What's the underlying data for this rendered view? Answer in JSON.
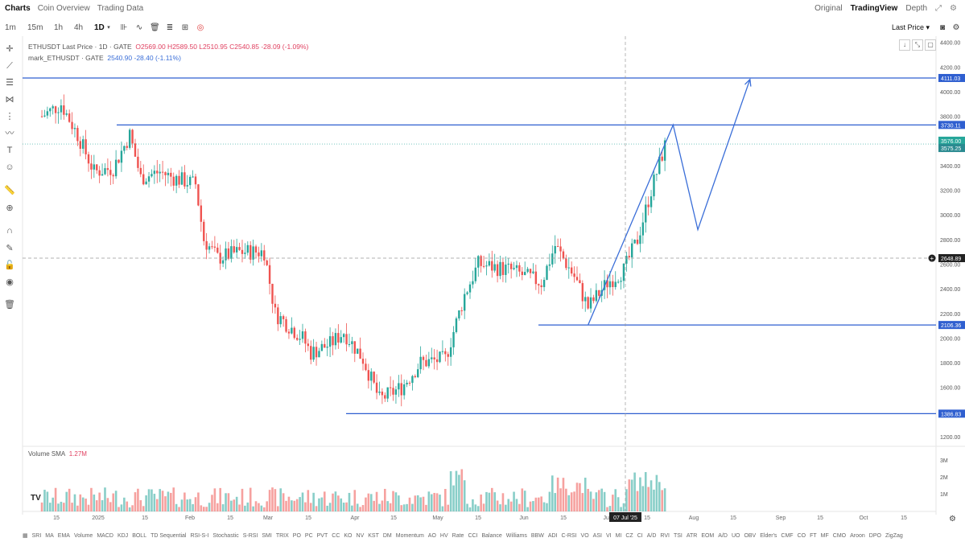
{
  "topnav": {
    "tabs": [
      "Charts",
      "Coin Overview",
      "Trading Data"
    ],
    "active_tab": "Charts",
    "views": [
      "Original",
      "TradingView",
      "Depth"
    ],
    "active_view": "TradingView"
  },
  "toolbar": {
    "timeframes": [
      "1m",
      "15m",
      "1h",
      "4h",
      "1D"
    ],
    "active_timeframe": "1D",
    "price_source": "Last Price"
  },
  "legend": {
    "symbol": "ETHUSDT Last Price · 1D · GATE",
    "ohlc": "O2569.00 H2589.50 L2510.95 C2540.85 -28.09 (-1.09%)",
    "mark_label": "mark_ETHUSDT · GATE",
    "mark_values": "2540.90 -28.40 (-1.11%)"
  },
  "volume_legend": {
    "label": "Volume SMA",
    "value": "1.27M"
  },
  "chart_data": {
    "type": "candlestick",
    "y_axis": {
      "ticks": [
        1200,
        1400,
        1600,
        1800,
        2000,
        2200,
        2400,
        2600,
        2800,
        3000,
        3200,
        3400,
        3600,
        3800,
        4000,
        4200,
        4400
      ],
      "labels": [
        "1200.00",
        "1400.00",
        "1600.00",
        "1800.00",
        "2000.00",
        "2200.00",
        "2400.00",
        "2600.00",
        "2800.00",
        "3000.00",
        "3200.00",
        "3400.00",
        "3600.00",
        "3800.00",
        "4000.00",
        "4200.00",
        "4400.00"
      ]
    },
    "volume_axis_labels": [
      "3M",
      "2M",
      "1M"
    ],
    "x_labels": [
      "15",
      "2025",
      "15",
      "Feb",
      "15",
      "Mar",
      "15",
      "Apr",
      "15",
      "May",
      "15",
      "Jun",
      "15",
      "Jul",
      "15",
      "Aug",
      "15",
      "Sep",
      "15",
      "Oct",
      "15"
    ],
    "crosshair_date": "07 Jul '25",
    "crosshair_price": "2648.89",
    "horizontal_levels": [
      {
        "price": 4111.03,
        "label": "4111.03"
      },
      {
        "price": 3730.11,
        "label": "3730.11"
      },
      {
        "price": 2106.36,
        "label": "2106.36"
      },
      {
        "price": 1386.83,
        "label": "1386.83"
      }
    ],
    "price_tags": [
      {
        "price": 3576.0,
        "label": "3576.00",
        "color": "#26a69a"
      },
      {
        "price": 3575.25,
        "label": "3575.25",
        "color": "#2a8a90"
      }
    ],
    "projection_path": [
      {
        "date": "2025-06-22",
        "price": 2106
      },
      {
        "date": "2025-07-23",
        "price": 3730
      },
      {
        "date": "2025-08-01",
        "price": 2880
      },
      {
        "date": "2025-08-20",
        "price": 4100
      }
    ],
    "candles_close_path": [
      {
        "date": "2024-12-05",
        "price": 3800
      },
      {
        "date": "2024-12-12",
        "price": 3900
      },
      {
        "date": "2024-12-18",
        "price": 3650
      },
      {
        "date": "2024-12-24",
        "price": 3350
      },
      {
        "date": "2024-12-31",
        "price": 3380
      },
      {
        "date": "2025-01-06",
        "price": 3650
      },
      {
        "date": "2025-01-10",
        "price": 3300
      },
      {
        "date": "2025-01-17",
        "price": 3350
      },
      {
        "date": "2025-01-22",
        "price": 3300
      },
      {
        "date": "2025-01-30",
        "price": 3250
      },
      {
        "date": "2025-02-02",
        "price": 2800
      },
      {
        "date": "2025-02-07",
        "price": 2650
      },
      {
        "date": "2025-02-15",
        "price": 2700
      },
      {
        "date": "2025-02-24",
        "price": 2700
      },
      {
        "date": "2025-02-28",
        "price": 2200
      },
      {
        "date": "2025-03-10",
        "price": 2000
      },
      {
        "date": "2025-03-13",
        "price": 1880
      },
      {
        "date": "2025-03-20",
        "price": 1950
      },
      {
        "date": "2025-03-25",
        "price": 2050
      },
      {
        "date": "2025-04-01",
        "price": 1830
      },
      {
        "date": "2025-04-07",
        "price": 1500
      },
      {
        "date": "2025-04-15",
        "price": 1600
      },
      {
        "date": "2025-04-22",
        "price": 1800
      },
      {
        "date": "2025-05-01",
        "price": 1830
      },
      {
        "date": "2025-05-08",
        "price": 2350
      },
      {
        "date": "2025-05-13",
        "price": 2600
      },
      {
        "date": "2025-05-25",
        "price": 2550
      },
      {
        "date": "2025-06-05",
        "price": 2450
      },
      {
        "date": "2025-06-10",
        "price": 2750
      },
      {
        "date": "2025-06-17",
        "price": 2500
      },
      {
        "date": "2025-06-22",
        "price": 2250
      },
      {
        "date": "2025-06-29",
        "price": 2450
      },
      {
        "date": "2025-07-05",
        "price": 2550
      },
      {
        "date": "2025-07-10",
        "price": 2800
      },
      {
        "date": "2025-07-15",
        "price": 3200
      },
      {
        "date": "2025-07-20",
        "price": 3560
      }
    ]
  },
  "bottom_indicators": [
    "SRI",
    "MA",
    "EMA",
    "Volume",
    "MACD",
    "KDJ",
    "BOLL",
    "TD Sequential",
    "RSI-S-I",
    "Stochastic",
    "S-RSI",
    "SMI",
    "TRIX",
    "PO",
    "PC",
    "PVT",
    "CC",
    "KO",
    "NV",
    "KST",
    "DM",
    "Momentum",
    "AO",
    "HV",
    "Rate",
    "CCI",
    "Balance",
    "Williams",
    "BBW",
    "ADI",
    "C-RSI",
    "VO",
    "ASI",
    "VI",
    "MI",
    "CZ",
    "CI",
    "A/D",
    "RVI",
    "TSI",
    "ATR",
    "EOM",
    "A/D",
    "UO",
    "OBV",
    "Elder's",
    "CMF",
    "CO",
    "FT",
    "MF",
    "CMO",
    "Aroon",
    "DPO",
    "ZigZag"
  ],
  "colors": {
    "up": "#26a69a",
    "down": "#ef5350",
    "level_line": "#2f5fd0",
    "projection": "#3a6ed8"
  }
}
